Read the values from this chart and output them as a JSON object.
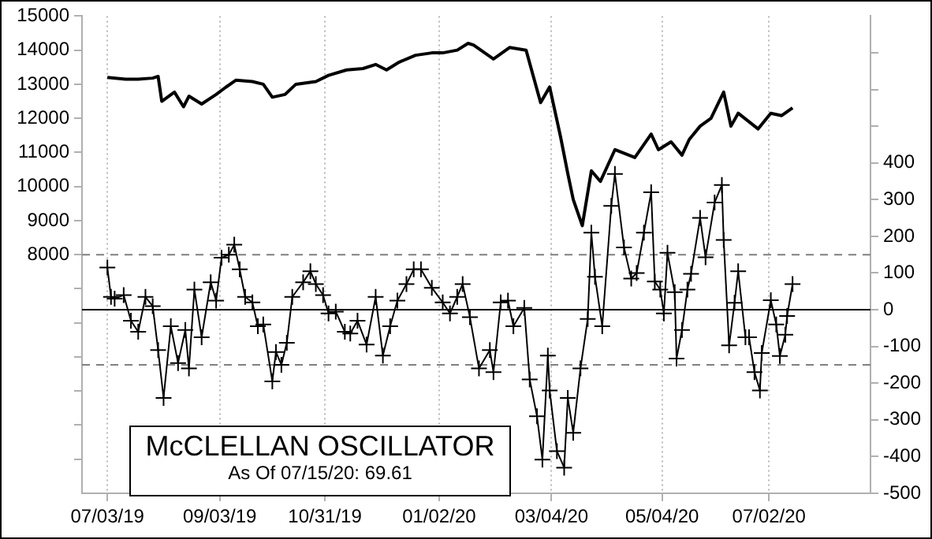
{
  "chart_data": {
    "type": "line",
    "title": "McCLELLAN OSCILLATOR",
    "subtitle": "As Of 07/15/20: 69.61",
    "series": [
      {
        "color": "#000000",
        "marker": "none",
        "axis": "y",
        "x": [
          "2019-07-03",
          "2019-07-13",
          "2019-07-20",
          "2019-07-28",
          "2019-07-31",
          "2019-08-02",
          "2019-08-09",
          "2019-08-14",
          "2019-08-17",
          "2019-08-24",
          "2019-09-01",
          "2019-09-06",
          "2019-09-12",
          "2019-09-21",
          "2019-09-27",
          "2019-10-02",
          "2019-10-09",
          "2019-10-15",
          "2019-10-26",
          "2019-11-02",
          "2019-11-12",
          "2019-11-21",
          "2019-11-28",
          "2019-12-04",
          "2019-12-11",
          "2019-12-20",
          "2019-12-29",
          "2020-01-04",
          "2020-01-12",
          "2020-01-18",
          "2020-01-21",
          "2020-02-01",
          "2020-02-10",
          "2020-02-19",
          "2020-02-27",
          "2020-03-03",
          "2020-03-09",
          "2020-03-13",
          "2020-03-16",
          "2020-03-21",
          "2020-03-26",
          "2020-03-31",
          "2020-04-08",
          "2020-04-19",
          "2020-04-28",
          "2020-05-02",
          "2020-05-09",
          "2020-05-15",
          "2020-05-19",
          "2020-05-25",
          "2020-05-31",
          "2020-06-07",
          "2020-06-11",
          "2020-06-15",
          "2020-06-26",
          "2020-07-03",
          "2020-07-09",
          "2020-07-15"
        ],
        "values": [
          13200,
          13150,
          13150,
          13180,
          13230,
          12500,
          12770,
          12340,
          12650,
          12420,
          12700,
          12900,
          13120,
          13080,
          13000,
          12620,
          12700,
          13000,
          13080,
          13260,
          13420,
          13460,
          13580,
          13420,
          13650,
          13850,
          13920,
          13920,
          14000,
          14200,
          14150,
          13740,
          14080,
          14000,
          12460,
          12920,
          11460,
          10380,
          9620,
          8850,
          10460,
          10150,
          11080,
          10850,
          11540,
          11080,
          11310,
          10920,
          11380,
          11770,
          12000,
          12770,
          11770,
          12150,
          11690,
          12150,
          12080,
          12310
        ]
      },
      {
        "color": "#000000",
        "marker": "cross",
        "axis": "y2",
        "x": [
          "2019-07-03",
          "2019-07-05",
          "2019-07-07",
          "2019-07-12",
          "2019-07-16",
          "2019-07-20",
          "2019-07-24",
          "2019-07-28",
          "2019-07-31",
          "2019-08-03",
          "2019-08-07",
          "2019-08-11",
          "2019-08-15",
          "2019-08-17",
          "2019-08-20",
          "2019-08-24",
          "2019-08-29",
          "2019-09-01",
          "2019-09-04",
          "2019-09-08",
          "2019-09-11",
          "2019-09-14",
          "2019-09-17",
          "2019-09-21",
          "2019-09-24",
          "2019-09-27",
          "2019-10-02",
          "2019-10-04",
          "2019-10-07",
          "2019-10-10",
          "2019-10-13",
          "2019-10-19",
          "2019-10-23",
          "2019-10-26",
          "2019-10-30",
          "2019-11-02",
          "2019-11-06",
          "2019-11-11",
          "2019-11-14",
          "2019-11-18",
          "2019-11-23",
          "2019-11-28",
          "2019-12-02",
          "2019-12-06",
          "2019-12-10",
          "2019-12-15",
          "2019-12-19",
          "2019-12-23",
          "2019-12-29",
          "2020-01-04",
          "2020-01-08",
          "2020-01-12",
          "2020-01-15",
          "2020-01-19",
          "2020-01-24",
          "2020-01-30",
          "2020-02-01",
          "2020-02-05",
          "2020-02-09",
          "2020-02-12",
          "2020-02-18",
          "2020-02-21",
          "2020-02-25",
          "2020-02-28",
          "2020-03-02",
          "2020-03-03",
          "2020-03-07",
          "2020-03-11",
          "2020-03-13",
          "2020-03-16",
          "2020-03-20",
          "2020-03-24",
          "2020-03-26",
          "2020-03-28",
          "2020-04-01",
          "2020-04-06",
          "2020-04-08",
          "2020-04-13",
          "2020-04-17",
          "2020-04-20",
          "2020-04-24",
          "2020-04-28",
          "2020-04-30",
          "2020-05-03",
          "2020-05-05",
          "2020-05-07",
          "2020-05-11",
          "2020-05-12",
          "2020-05-15",
          "2020-05-18",
          "2020-05-20",
          "2020-05-25",
          "2020-05-28",
          "2020-06-02",
          "2020-06-06",
          "2020-06-07",
          "2020-06-10",
          "2020-06-13",
          "2020-06-15",
          "2020-06-19",
          "2020-06-21",
          "2020-06-24",
          "2020-06-27",
          "2020-06-28",
          "2020-07-03",
          "2020-07-06",
          "2020-07-08",
          "2020-07-11",
          "2020-07-12",
          "2020-07-15"
        ],
        "values": [
          115,
          35,
          30,
          40,
          -30,
          -60,
          35,
          10,
          -110,
          -240,
          -45,
          -145,
          -55,
          -160,
          55,
          -75,
          75,
          25,
          142,
          150,
          177,
          110,
          35,
          20,
          -45,
          -40,
          -195,
          -115,
          -150,
          -90,
          35,
          75,
          105,
          70,
          40,
          -10,
          -5,
          -60,
          -65,
          -30,
          -95,
          35,
          -125,
          -45,
          25,
          70,
          110,
          110,
          60,
          20,
          -10,
          35,
          70,
          -20,
          -160,
          -110,
          -170,
          20,
          25,
          -45,
          5,
          -190,
          -290,
          -408,
          -125,
          -220,
          -385,
          -430,
          -240,
          -335,
          -160,
          -25,
          210,
          90,
          -45,
          283,
          370,
          170,
          85,
          100,
          210,
          320,
          77,
          55,
          -10,
          155,
          48,
          -133,
          -55,
          55,
          98,
          250,
          143,
          292,
          340,
          190,
          -97,
          19,
          105,
          -75,
          -75,
          -170,
          -220,
          -118,
          26,
          -40,
          -126,
          -68,
          -17,
          70
        ]
      }
    ],
    "xlim": [
      "2019-06-19",
      "2020-08-27"
    ],
    "xticks": [
      {
        "value": "2019-07-03",
        "label": "07/03/19"
      },
      {
        "value": "2019-09-03",
        "label": "09/03/19"
      },
      {
        "value": "2019-10-31",
        "label": "10/31/19"
      },
      {
        "value": "2020-01-02",
        "label": "01/02/20"
      },
      {
        "value": "2020-03-04",
        "label": "03/04/20"
      },
      {
        "value": "2020-05-04",
        "label": "05/04/20"
      },
      {
        "value": "2020-07-02",
        "label": "07/02/20"
      }
    ],
    "ylim": [
      1000,
      15000
    ],
    "yticks": [
      15000,
      14000,
      13000,
      12000,
      11000,
      10000,
      9000,
      8000,
      {
        "value": 7000,
        "label": null
      },
      {
        "value": 6000,
        "label": null
      },
      {
        "value": 5000,
        "label": null
      },
      {
        "value": 4000,
        "label": null
      },
      {
        "value": 3000,
        "label": null
      },
      {
        "value": 2000,
        "label": null
      }
    ],
    "y2lim": [
      -500,
      800
    ],
    "y2ticks": [
      {
        "value": 700,
        "label": null
      },
      {
        "value": 600,
        "label": null
      },
      {
        "value": 500,
        "label": null
      },
      400,
      300,
      200,
      100,
      0,
      -100,
      -200,
      -300,
      -400,
      -500
    ],
    "ref_lines": [
      {
        "axis": "y2",
        "value": 150,
        "color": "#808080",
        "line_style": "dashed"
      },
      {
        "axis": "y2",
        "value": -150,
        "color": "#808080",
        "line_style": "dashed"
      },
      {
        "axis": "y2",
        "value": 0,
        "color": "#000000",
        "line_style": "solid"
      }
    ],
    "grid": "x",
    "legend": false
  }
}
